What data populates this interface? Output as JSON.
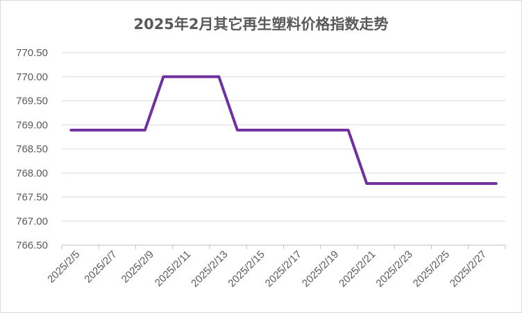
{
  "chart_data": {
    "type": "line",
    "title": "2025年2月其它再生塑料价格指数走势",
    "xlabel": "",
    "ylabel": "",
    "ylim": [
      766.5,
      770.5
    ],
    "y_ticks": [
      "766.50",
      "767.00",
      "767.50",
      "768.00",
      "768.50",
      "769.00",
      "769.50",
      "770.00",
      "770.50"
    ],
    "x_tick_labels": [
      "2025/2/5",
      "2025/2/7",
      "2025/2/9",
      "2025/2/11",
      "2025/2/13",
      "2025/2/15",
      "2025/2/17",
      "2025/2/19",
      "2025/2/21",
      "2025/2/23",
      "2025/2/25",
      "2025/2/27"
    ],
    "x": [
      "2025/2/5",
      "2025/2/6",
      "2025/2/7",
      "2025/2/8",
      "2025/2/9",
      "2025/2/10",
      "2025/2/11",
      "2025/2/12",
      "2025/2/13",
      "2025/2/14",
      "2025/2/15",
      "2025/2/16",
      "2025/2/17",
      "2025/2/18",
      "2025/2/19",
      "2025/2/20",
      "2025/2/21",
      "2025/2/22",
      "2025/2/23",
      "2025/2/24",
      "2025/2/25",
      "2025/2/26",
      "2025/2/27",
      "2025/2/28"
    ],
    "grid": true,
    "legend": "none",
    "series": [
      {
        "color": "#7030a0",
        "values": [
          768.89,
          768.89,
          768.89,
          768.89,
          768.89,
          770.0,
          770.0,
          770.0,
          770.0,
          768.89,
          768.89,
          768.89,
          768.89,
          768.89,
          768.89,
          768.89,
          767.78,
          767.78,
          767.78,
          767.78,
          767.78,
          767.78,
          767.78,
          767.78
        ]
      }
    ]
  }
}
